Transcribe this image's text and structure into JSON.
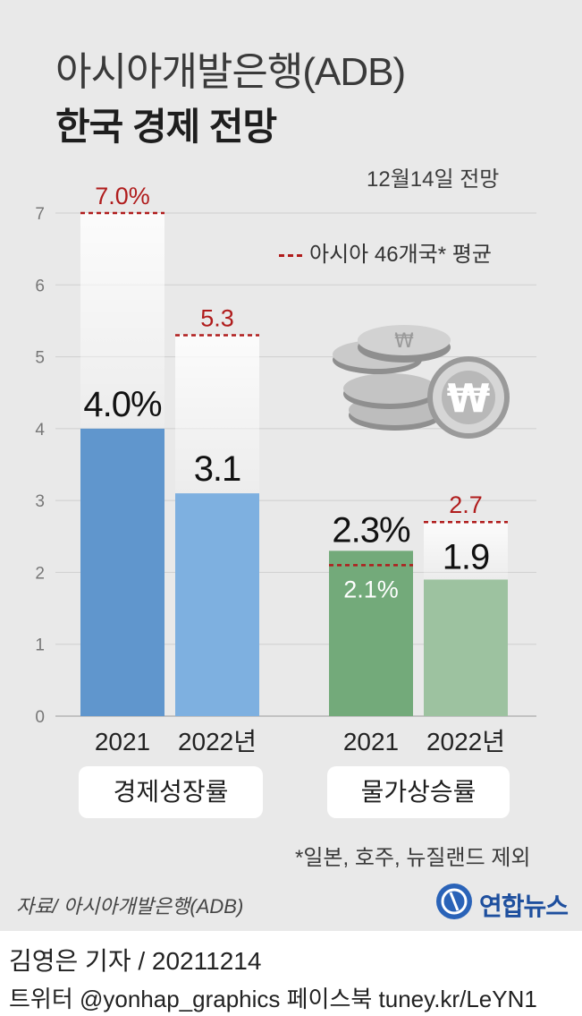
{
  "header": {
    "title_line1": "아시아개발은행(ADB)",
    "title_line2": "한국 경제 전망",
    "subtitle": "12월14일 전망"
  },
  "legend": {
    "label": "아시아 46개국* 평균"
  },
  "footnote": "*일본, 호주, 뉴질랜드 제외",
  "source": "자료/ 아시아개발은행(ADB)",
  "brand": "연합뉴스",
  "credit": {
    "reporter": "김영은 기자 / 20211214",
    "sns": "트위터 @yonhap_graphics  페이스북 tuney.kr/LeYN1"
  },
  "chart_data": {
    "type": "bar",
    "ylim": [
      0,
      7
    ],
    "yticks": [
      "0",
      "1",
      "2",
      "3",
      "4",
      "5",
      "6",
      "7"
    ],
    "groups": [
      {
        "name": "경제성장률",
        "color_bar": [
          "#6096cd",
          "#7eb0e0"
        ],
        "bars": [
          {
            "year": "2021",
            "value": 4.0,
            "label": "4.0%",
            "asia_avg": 7.0,
            "asia_label": "7.0%"
          },
          {
            "year": "2022년",
            "value": 3.1,
            "label": "3.1",
            "asia_avg": 5.3,
            "asia_label": "5.3"
          }
        ]
      },
      {
        "name": "물가상승률",
        "color_bar": [
          "#73aa7a",
          "#9dc2a0"
        ],
        "bars": [
          {
            "year": "2021",
            "value": 2.3,
            "label": "2.3%",
            "asia_avg": 2.1,
            "asia_label": "2.1%"
          },
          {
            "year": "2022년",
            "value": 1.9,
            "label": "1.9",
            "asia_avg": 2.7,
            "asia_label": "2.7"
          }
        ]
      }
    ],
    "colors": {
      "asia_line": "#b01c1c",
      "grid": "#cfcfcf"
    }
  }
}
